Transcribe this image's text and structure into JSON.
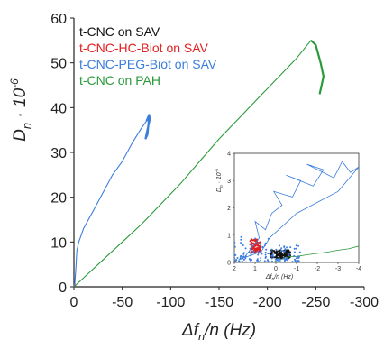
{
  "chart_data": [
    {
      "type": "line",
      "xlabel": {
        "main": "Δf",
        "sub": "n",
        "rest": "/n (Hz)"
      },
      "ylabel": {
        "main": "D",
        "sub": "n",
        "rest": " · 10",
        "sup": "-6"
      },
      "xlim": [
        0,
        -300
      ],
      "ylim": [
        0,
        60
      ],
      "x_ticks": [
        0,
        -50,
        -100,
        -150,
        -200,
        -250,
        -300
      ],
      "y_ticks": [
        0,
        10,
        20,
        30,
        40,
        50,
        60
      ],
      "legend_position": "top-left",
      "series": [
        {
          "name": "t-CNC on SAV",
          "color": "#111111",
          "points": [
            [
              0,
              0
            ],
            [
              -0.5,
              0.3
            ],
            [
              -1,
              0.5
            ]
          ]
        },
        {
          "name": "t-CNC-HC-Biot on SAV",
          "color": "#e02020",
          "points": [
            [
              0,
              0
            ],
            [
              -0.5,
              0.4
            ],
            [
              -1,
              0.8
            ]
          ]
        },
        {
          "name": "t-CNC-PEG-Biot on SAV",
          "color": "#3b7ddd",
          "points": [
            [
              0,
              0
            ],
            [
              -1,
              1
            ],
            [
              -2,
              4
            ],
            [
              -3,
              8
            ],
            [
              -5,
              10
            ],
            [
              -10,
              13
            ],
            [
              -20,
              17
            ],
            [
              -30,
              21
            ],
            [
              -40,
              25
            ],
            [
              -50,
              28
            ],
            [
              -60,
              32
            ],
            [
              -70,
              35.5
            ],
            [
              -75,
              37
            ],
            [
              -78,
              38.5
            ],
            [
              -76,
              34
            ],
            [
              -74,
              33
            ],
            [
              -77,
              36
            ],
            [
              -79,
              38
            ]
          ]
        },
        {
          "name": "t-CNC on PAH",
          "color": "#2a9a3a",
          "points": [
            [
              0,
              0
            ],
            [
              -10,
              2
            ],
            [
              -30,
              6
            ],
            [
              -50,
              10
            ],
            [
              -70,
              14
            ],
            [
              -90,
              18.5
            ],
            [
              -110,
              23
            ],
            [
              -130,
              28
            ],
            [
              -150,
              33
            ],
            [
              -170,
              37.5
            ],
            [
              -190,
              42
            ],
            [
              -210,
              46.5
            ],
            [
              -230,
              51
            ],
            [
              -245,
              55
            ],
            [
              -250,
              54
            ],
            [
              -255,
              50
            ],
            [
              -258,
              47
            ],
            [
              -256,
              45
            ],
            [
              -254,
              43
            ]
          ]
        }
      ]
    },
    {
      "type": "scatter",
      "ylabel": {
        "main": "D",
        "sub": "n",
        "rest": " · 10",
        "sup": "-6"
      },
      "xlabel": {
        "main": "Δf",
        "sub": "n",
        "rest": "/n (Hz)"
      },
      "xlim": [
        2,
        -4
      ],
      "ylim": [
        0,
        4
      ],
      "x_ticks": [
        2,
        1,
        0,
        -1,
        -2,
        -3,
        -4
      ],
      "y_ticks": [
        0,
        1,
        2,
        3,
        4
      ],
      "series": [
        {
          "name": "t-CNC on SAV",
          "color": "#111111",
          "center": [
            -0.2,
            0.3
          ],
          "spread": [
            0.5,
            0.15
          ],
          "count": 120
        },
        {
          "name": "t-CNC-HC-Biot on SAV",
          "color": "#e02020",
          "center": [
            1.0,
            0.6
          ],
          "spread": [
            0.25,
            0.25
          ],
          "count": 90
        },
        {
          "name": "t-CNC-PEG-Biot on SAV",
          "color": "#3b7ddd",
          "points": [
            [
              1.5,
              0.2
            ],
            [
              1.2,
              0.5
            ],
            [
              0.8,
              0.9
            ],
            [
              1.0,
              1.5
            ],
            [
              0.5,
              1.2
            ],
            [
              0.2,
              1.8
            ],
            [
              -0.3,
              2.1
            ],
            [
              0.1,
              2.6
            ],
            [
              -0.8,
              2.4
            ],
            [
              -1.2,
              3.0
            ],
            [
              -0.5,
              3.2
            ],
            [
              -1.8,
              2.8
            ],
            [
              -2.3,
              3.4
            ],
            [
              -1.5,
              3.6
            ],
            [
              -2.8,
              3.1
            ],
            [
              -3.2,
              3.7
            ],
            [
              -3.6,
              3.3
            ],
            [
              -4.0,
              3.5
            ],
            [
              -3.0,
              2.6
            ],
            [
              -2.0,
              2.2
            ],
            [
              -1.0,
              1.8
            ],
            [
              0.3,
              0.9
            ],
            [
              0.7,
              0.4
            ],
            [
              1.8,
              0.1
            ]
          ]
        },
        {
          "name": "t-CNC on PAH",
          "color": "#2a9a3a",
          "points": [
            [
              0.2,
              0.0
            ],
            [
              -0.2,
              0.1
            ],
            [
              -0.6,
              0.2
            ],
            [
              -1.0,
              0.22
            ],
            [
              -1.5,
              0.28
            ],
            [
              -2.0,
              0.33
            ],
            [
              -2.5,
              0.38
            ],
            [
              -3.0,
              0.45
            ],
            [
              -3.5,
              0.5
            ],
            [
              -4.0,
              0.6
            ]
          ]
        }
      ]
    }
  ]
}
